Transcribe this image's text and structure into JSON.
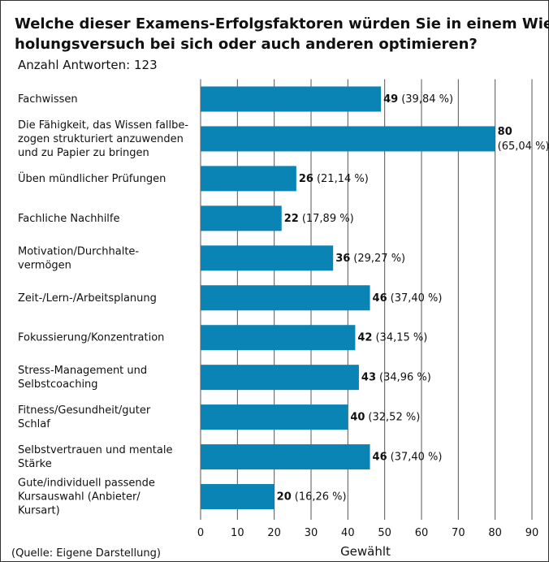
{
  "chart_data": {
    "type": "barh",
    "title": "Welche dieser Examens-Erfolgsfaktoren würden Sie in einem Wieder-\nholungsversuch bei sich oder auch anderen optimieren?",
    "subtitle": "Anzahl Antworten: 123",
    "categories": [
      "Fachwissen",
      "Die Fähigkeit, das Wissen fallbe-\nzogen strukturiert anzuwenden\nund zu Papier zu bringen",
      "Üben mündlicher Prüfungen",
      "Fachliche Nachhilfe",
      "Motivation/Durchhalte-\nvermögen",
      "Zeit-/Lern-/Arbeitsplanung",
      "Fokussierung/Konzentration",
      "Stress-Management und\nSelbstcoaching",
      "Fitness/Gesundheit/guter\nSchlaf",
      "Selbstvertrauen und mentale\nStärke",
      "Gute/individuell passende\nKursauswahl (Anbieter/\nKursart)"
    ],
    "values": [
      49,
      80,
      26,
      22,
      36,
      46,
      42,
      43,
      40,
      46,
      20
    ],
    "percentage_labels": [
      "(39,84 %)",
      "(65,04 %)",
      "(21,14 %)",
      "(17,89 %)",
      "(29,27 %)",
      "(37,40 %)",
      "(34,15 %)",
      "(34,96 %)",
      "(32,52 %)",
      "(37,40 %)",
      "(16,26 %)"
    ],
    "color": "#0a83b5",
    "xlim": [
      0,
      90
    ],
    "xticks": [
      0,
      10,
      20,
      30,
      40,
      50,
      60,
      70,
      80,
      90
    ],
    "xlabel": "Gewählt",
    "grid": true,
    "source": "(Quelle: Eigene Darstellung)"
  }
}
